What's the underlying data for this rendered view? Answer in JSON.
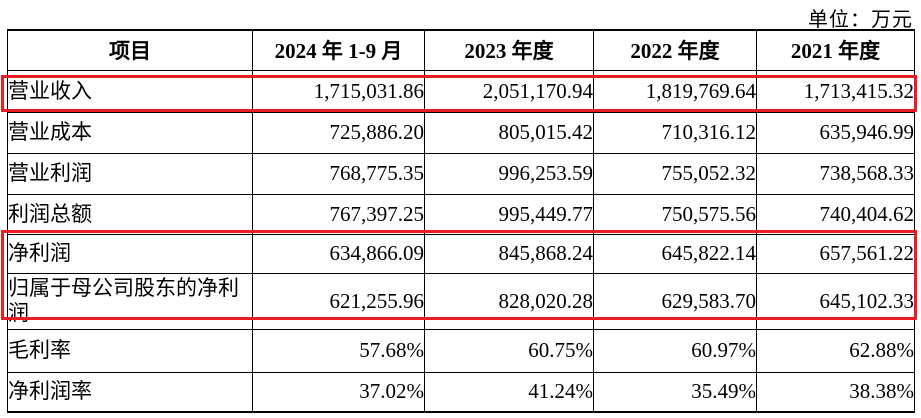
{
  "unit_label": "单位：万元",
  "highlight_color": "#ed1c24",
  "table": {
    "columns": [
      "项目",
      "2024 年 1-9 月",
      "2023 年度",
      "2022 年度",
      "2021 年度"
    ],
    "rows": [
      {
        "label": "营业收入",
        "values": [
          "1,715,031.86",
          "2,051,170.94",
          "1,819,769.64",
          "1,713,415.32"
        ],
        "highlighted": true
      },
      {
        "label": "营业成本",
        "values": [
          "725,886.20",
          "805,015.42",
          "710,316.12",
          "635,946.99"
        ],
        "highlighted": false
      },
      {
        "label": "营业利润",
        "values": [
          "768,775.35",
          "996,253.59",
          "755,052.32",
          "738,568.33"
        ],
        "highlighted": false
      },
      {
        "label": "利润总额",
        "values": [
          "767,397.25",
          "995,449.77",
          "750,575.56",
          "740,404.62"
        ],
        "highlighted": false
      },
      {
        "label": "净利润",
        "values": [
          "634,866.09",
          "845,868.24",
          "645,822.14",
          "657,561.22"
        ],
        "highlighted": true
      },
      {
        "label": "归属于母公司股东的净利\n润",
        "values": [
          "621,255.96",
          "828,020.28",
          "629,583.70",
          "645,102.33"
        ],
        "highlighted": true
      },
      {
        "label": "毛利率",
        "values": [
          "57.68%",
          "60.75%",
          "60.97%",
          "62.88%"
        ],
        "highlighted": false
      },
      {
        "label": "净利润率",
        "values": [
          "37.02%",
          "41.24%",
          "35.49%",
          "38.38%"
        ],
        "highlighted": false
      }
    ]
  }
}
